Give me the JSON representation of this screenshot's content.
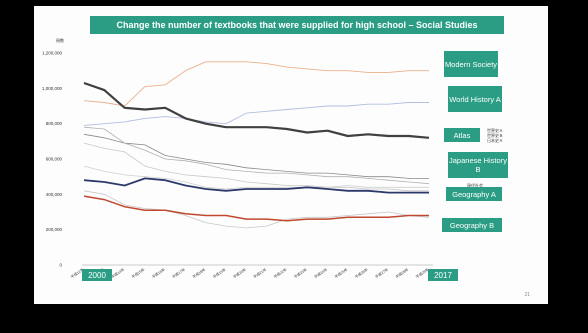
{
  "chart_data": {
    "type": "line",
    "title": "Change  the number of textbooks that were supplied for high school – Social Studies",
    "unit_label": "冊数",
    "ylim": [
      0,
      1200000
    ],
    "yticks": [
      0,
      200000,
      400000,
      600000,
      800000,
      1000000,
      1200000
    ],
    "ytick_labels": [
      "0",
      "200,000",
      "400,000",
      "600,000",
      "800,000",
      "1,000,000",
      "1,200,000"
    ],
    "categories": [
      "平成12年",
      "平成13年",
      "平成14年",
      "平成15年",
      "平成16年",
      "平成17年",
      "平成18年",
      "平成19年",
      "平成20年",
      "平成21年",
      "平成22年",
      "平成23年",
      "平成24年",
      "平成25年",
      "平成26年",
      "平成27年",
      "平成28年",
      "平成29年"
    ],
    "start_year_label": "2000",
    "end_year_label": "2017",
    "series": [
      {
        "label": "Modern Society",
        "color": "#e8b08c",
        "width": 0.9,
        "values": [
          930000,
          920000,
          900000,
          1010000,
          1020000,
          1100000,
          1150000,
          1150000,
          1150000,
          1140000,
          1120000,
          1110000,
          1100000,
          1100000,
          1090000,
          1090000,
          1100000,
          1100000
        ]
      },
      {
        "label": "World History A",
        "color": "#b3bede",
        "width": 0.9,
        "values": [
          790000,
          800000,
          810000,
          830000,
          840000,
          830000,
          810000,
          800000,
          860000,
          870000,
          880000,
          890000,
          900000,
          900000,
          910000,
          910000,
          920000,
          920000
        ]
      },
      {
        "label": "Atlas",
        "color": "#404040",
        "width": 2.2,
        "values": [
          1030000,
          990000,
          890000,
          880000,
          890000,
          830000,
          800000,
          780000,
          780000,
          780000,
          770000,
          750000,
          760000,
          730000,
          740000,
          730000,
          730000,
          720000
        ]
      },
      {
        "label": "Japanese History B",
        "color": "#8a8a8a",
        "width": 0.8,
        "values": [
          740000,
          720000,
          690000,
          680000,
          620000,
          600000,
          580000,
          570000,
          550000,
          540000,
          530000,
          520000,
          520000,
          510000,
          500000,
          500000,
          490000,
          490000
        ]
      },
      {
        "label": "",
        "color": "#b0b0b0",
        "width": 0.8,
        "values": [
          780000,
          770000,
          690000,
          650000,
          600000,
          590000,
          570000,
          540000,
          530000,
          520000,
          520000,
          510000,
          500000,
          500000,
          490000,
          480000,
          470000,
          460000
        ]
      },
      {
        "label": "",
        "color": "#c8c8c8",
        "width": 0.8,
        "values": [
          690000,
          660000,
          640000,
          560000,
          530000,
          510000,
          500000,
          490000,
          470000,
          460000,
          450000,
          450000,
          440000,
          440000,
          430000,
          430000,
          420000,
          420000
        ]
      },
      {
        "label": "",
        "color": "#d0d0d0",
        "width": 0.8,
        "values": [
          560000,
          530000,
          510000,
          500000,
          490000,
          470000,
          440000,
          430000,
          440000,
          440000,
          440000,
          440000,
          440000,
          450000,
          440000,
          440000,
          440000,
          440000
        ]
      },
      {
        "label": "Geography A",
        "color": "#2c3a6b",
        "width": 1.8,
        "values": [
          480000,
          470000,
          450000,
          490000,
          480000,
          450000,
          430000,
          420000,
          430000,
          430000,
          430000,
          440000,
          430000,
          420000,
          420000,
          410000,
          410000,
          410000
        ]
      },
      {
        "label": "",
        "color": "#c8c8c8",
        "width": 0.8,
        "values": [
          420000,
          400000,
          340000,
          320000,
          310000,
          280000,
          240000,
          220000,
          210000,
          220000,
          260000,
          270000,
          270000,
          280000,
          290000,
          300000,
          280000,
          270000
        ]
      },
      {
        "label": "Geography B",
        "color": "#c0482f",
        "width": 1.5,
        "values": [
          390000,
          370000,
          330000,
          310000,
          310000,
          290000,
          280000,
          280000,
          260000,
          260000,
          250000,
          260000,
          260000,
          270000,
          270000,
          270000,
          280000,
          280000
        ]
      }
    ],
    "legend_entries": [
      "世界史Ａ",
      "世界史Ｂ",
      "日本史Ａ",
      "現代社会"
    ],
    "grid": false
  },
  "page_number": "21"
}
